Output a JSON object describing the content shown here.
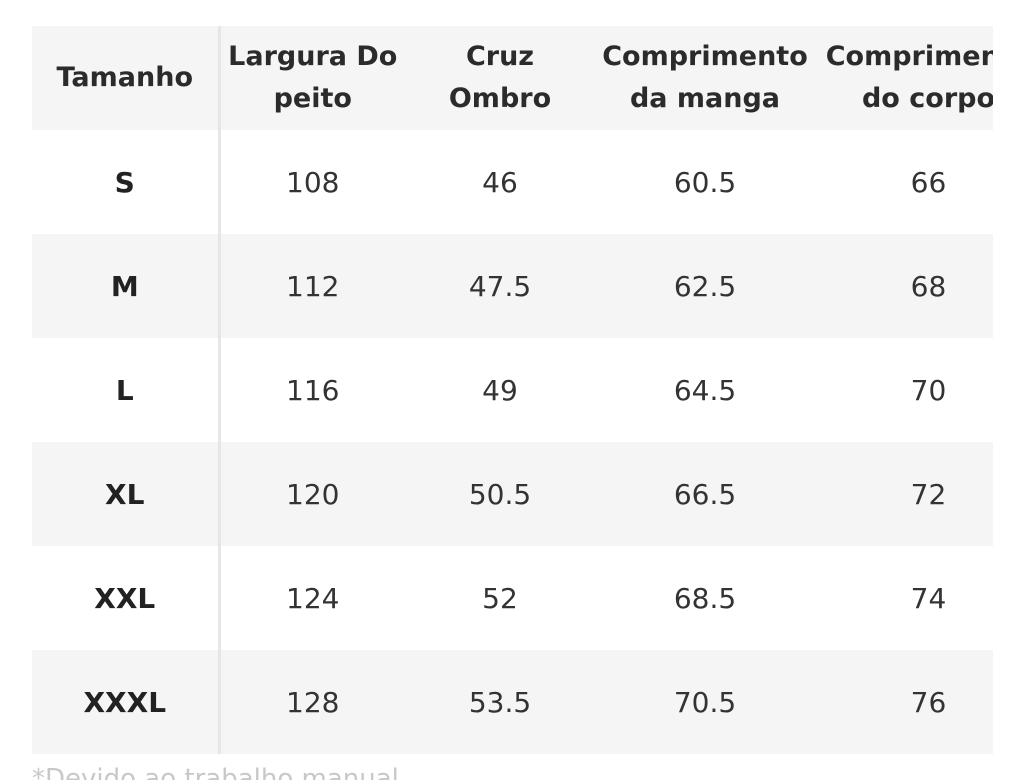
{
  "table": {
    "header": {
      "size": "Tamanho",
      "chest": [
        "Largura Do",
        "peito"
      ],
      "shoulder": [
        "Cruz",
        "Ombro"
      ],
      "sleeve": [
        "Comprimento",
        "da manga"
      ],
      "body": [
        "Comprimento",
        "do corpo"
      ]
    },
    "rows": [
      {
        "size": "S",
        "chest": "108",
        "shoulder": "46",
        "sleeve": "60.5",
        "body": "66"
      },
      {
        "size": "M",
        "chest": "112",
        "shoulder": "47.5",
        "sleeve": "62.5",
        "body": "68"
      },
      {
        "size": "L",
        "chest": "116",
        "shoulder": "49",
        "sleeve": "64.5",
        "body": "70"
      },
      {
        "size": "XL",
        "chest": "120",
        "shoulder": "50.5",
        "sleeve": "66.5",
        "body": "72"
      },
      {
        "size": "XXL",
        "chest": "124",
        "shoulder": "52",
        "sleeve": "68.5",
        "body": "74"
      },
      {
        "size": "XXXL",
        "chest": "128",
        "shoulder": "53.5",
        "sleeve": "70.5",
        "body": "76"
      }
    ]
  },
  "footer_note": "*Devido ao trabalho manual...",
  "colors": {
    "stripe": "#f5f5f5",
    "divider": "#e6e6e6",
    "text": "#2b2b2b"
  }
}
